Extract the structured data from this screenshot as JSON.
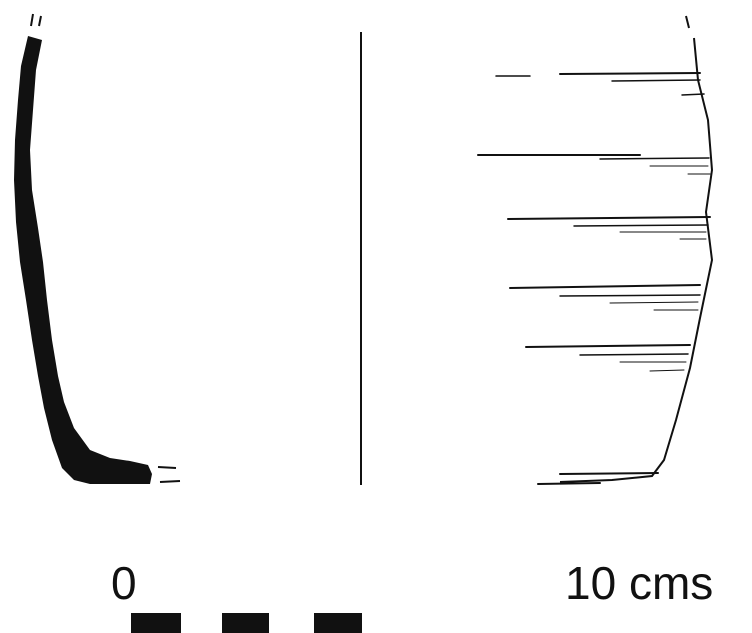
{
  "figure": {
    "scale_bar": {
      "start_label": "0",
      "end_label": "10 cms",
      "segments": 3
    },
    "colors": {
      "ink": "#111111",
      "background": "#ffffff"
    }
  }
}
